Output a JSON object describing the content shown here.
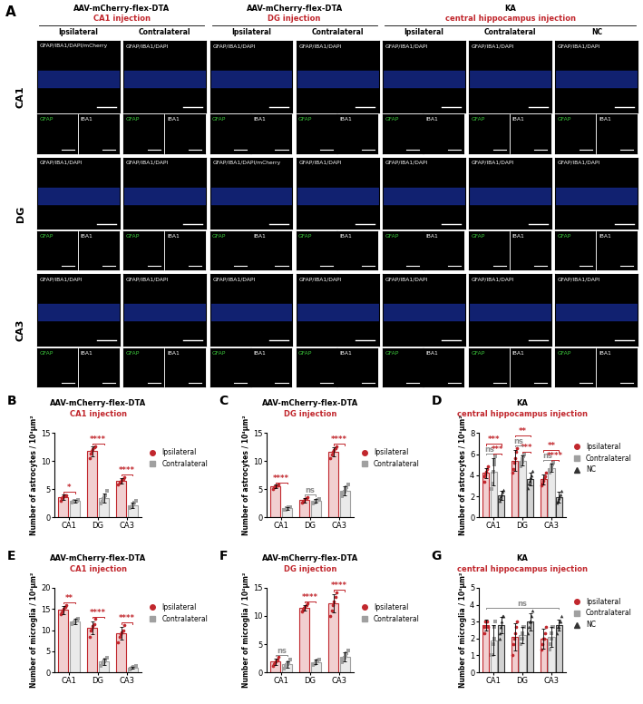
{
  "image_panel": {
    "label": "A",
    "groups": [
      {
        "title": "AAV-mCherry-flex-DTA",
        "subtitle": "CA1 injection",
        "columns": [
          "Ipsilateral",
          "Contralateral"
        ]
      },
      {
        "title": "AAV-mCherry-flex-DTA",
        "subtitle": "DG injection",
        "columns": [
          "Ipsilateral",
          "Contralateral"
        ]
      },
      {
        "title": "KA",
        "subtitle": "central hippocampus injection",
        "columns": [
          "Ipsilateral",
          "Contralateral",
          "NC"
        ]
      }
    ],
    "insets": [
      {
        "label": "GFAP",
        "color": "#3cc83c"
      },
      {
        "label": "IBA1",
        "color": "#ffffff"
      }
    ],
    "rows": [
      {
        "label": "CA1",
        "cells": [
          "GFAP/IBA1/DAPI/mCherry",
          "GFAP/IBA1/DAPI",
          "GFAP/IBA1/DAPI",
          "GFAP/IBA1/DAPI",
          "GFAP/IBA1/DAPI",
          "GFAP/IBA1/DAPI",
          "GFAP/IBA1/DAPI"
        ]
      },
      {
        "label": "DG",
        "cells": [
          "GFAP/IBA1/DAPI",
          "GFAP/IBA1/DAPI",
          "GFAP/IBA1/DAPI/mCherry",
          "GFAP/IBA1/DAPI",
          "GFAP/IBA1/DAPI",
          "GFAP/IBA1/DAPI",
          "GFAP/IBA1/DAPI"
        ]
      },
      {
        "label": "CA3",
        "cells": [
          "GFAP/IBA1/DAPI",
          "GFAP/IBA1/DAPI",
          "GFAP/IBA1/DAPI",
          "GFAP/IBA1/DAPI",
          "GFAP/IBA1/DAPI",
          "GFAP/IBA1/DAPI",
          "GFAP/IBA1/DAPI"
        ]
      }
    ]
  },
  "chart_data": [
    {
      "panel": "B",
      "type": "bar",
      "title": "AAV-mCherry-flex-DTA",
      "subtitle": "CA1 injection",
      "y_label": "Number of astrocytes / 10⁴μm²",
      "categories": [
        "CA1",
        "DG",
        "CA3"
      ],
      "ylim": [
        0,
        15
      ],
      "yticks": [
        0,
        5,
        10,
        15
      ],
      "legend": "right",
      "series": [
        {
          "name": "Ipsilateral",
          "color": "#c1272d",
          "marker": "circle",
          "values": [
            3.6,
            11.8,
            6.5
          ],
          "errors": [
            0.5,
            0.9,
            0.5
          ],
          "points": [
            [
              3.0,
              3.4,
              3.6,
              3.8,
              3.9,
              4.0
            ],
            [
              10.5,
              11.3,
              11.8,
              12.2,
              12.4,
              12.6
            ],
            [
              5.9,
              6.1,
              6.3,
              6.6,
              6.9,
              7.2
            ]
          ]
        },
        {
          "name": "Contralateral",
          "color": "#a0a0a0",
          "marker": "square",
          "values": [
            2.9,
            3.5,
            2.2
          ],
          "errors": [
            0.2,
            0.8,
            0.5
          ],
          "points": [
            [
              2.7,
              2.8,
              2.9,
              2.9,
              3.0,
              3.1
            ],
            [
              2.5,
              2.8,
              3.2,
              3.6,
              4.0,
              4.8
            ],
            [
              1.6,
              1.8,
              2.0,
              2.3,
              2.6,
              2.9
            ]
          ]
        }
      ],
      "annotations": [
        {
          "category": "CA1",
          "from": "Ipsilateral",
          "to": "Contralateral",
          "text": "*",
          "color": "#c1272d"
        },
        {
          "category": "DG",
          "from": "Ipsilateral",
          "to": "Contralateral",
          "text": "****",
          "color": "#c1272d"
        },
        {
          "category": "CA3",
          "from": "Ipsilateral",
          "to": "Contralateral",
          "text": "****",
          "color": "#c1272d"
        }
      ]
    },
    {
      "panel": "C",
      "type": "bar",
      "title": "AAV-mCherry-flex-DTA",
      "subtitle": "DG injection",
      "y_label": "Number of astrocytes / 10⁴μm²",
      "categories": [
        "CA1",
        "DG",
        "CA3"
      ],
      "ylim": [
        0,
        15
      ],
      "yticks": [
        0,
        5,
        10,
        15
      ],
      "legend": "right",
      "series": [
        {
          "name": "Ipsilateral",
          "color": "#c1272d",
          "marker": "circle",
          "values": [
            5.5,
            3.1,
            11.7
          ],
          "errors": [
            0.3,
            0.4,
            0.8
          ],
          "points": [
            [
              5.1,
              5.3,
              5.5,
              5.6,
              5.7,
              5.8
            ],
            [
              2.6,
              2.8,
              3.0,
              3.2,
              3.4,
              3.6
            ],
            [
              10.6,
              11.2,
              11.6,
              11.9,
              12.3,
              12.6
            ]
          ]
        },
        {
          "name": "Contralateral",
          "color": "#a0a0a0",
          "marker": "square",
          "values": [
            1.6,
            2.9,
            4.8
          ],
          "errors": [
            0.2,
            0.3,
            0.8
          ],
          "points": [
            [
              1.3,
              1.4,
              1.6,
              1.7,
              1.8,
              1.9
            ],
            [
              2.5,
              2.7,
              2.9,
              3.0,
              3.1,
              3.2
            ],
            [
              3.8,
              4.2,
              4.6,
              5.0,
              5.4,
              5.8
            ]
          ]
        }
      ],
      "annotations": [
        {
          "category": "CA1",
          "from": "Ipsilateral",
          "to": "Contralateral",
          "text": "****",
          "color": "#c1272d"
        },
        {
          "category": "DG",
          "from": "Ipsilateral",
          "to": "Contralateral",
          "text": "ns",
          "color": "#8c8c8c"
        },
        {
          "category": "CA3",
          "from": "Ipsilateral",
          "to": "Contralateral",
          "text": "****",
          "color": "#c1272d"
        }
      ]
    },
    {
      "panel": "D",
      "type": "bar",
      "title": "KA",
      "subtitle": "central hippocampus injection",
      "y_label": "Number of astrocytes / 10⁴μm²",
      "categories": [
        "CA1",
        "DG",
        "CA3"
      ],
      "ylim": [
        0,
        8
      ],
      "yticks": [
        0,
        2,
        4,
        6,
        8
      ],
      "legend": "right",
      "series": [
        {
          "name": "Ipsilateral",
          "color": "#c1272d",
          "marker": "circle",
          "values": [
            4.2,
            5.4,
            3.6
          ],
          "errors": [
            0.5,
            1.0,
            0.5
          ],
          "points": [
            [
              3.4,
              3.9,
              4.1,
              4.3,
              4.6,
              4.8
            ],
            [
              4.2,
              4.6,
              5.2,
              5.6,
              6.2,
              6.6
            ],
            [
              3.0,
              3.2,
              3.5,
              3.7,
              3.9,
              4.2
            ]
          ]
        },
        {
          "name": "Contralateral",
          "color": "#a0a0a0",
          "marker": "square",
          "values": [
            4.3,
            5.4,
            4.7
          ],
          "errors": [
            1.3,
            0.5,
            0.4
          ],
          "points": [
            [
              2.7,
              3.2,
              4.3,
              5.0,
              5.4,
              5.8
            ],
            [
              4.8,
              5.1,
              5.3,
              5.5,
              5.8,
              6.0
            ],
            [
              4.2,
              4.4,
              4.6,
              4.8,
              5.0,
              5.2
            ]
          ]
        },
        {
          "name": "NC",
          "color": "#333333",
          "marker": "triangle",
          "values": [
            2.1,
            3.6,
            1.9
          ],
          "errors": [
            0.4,
            0.6,
            0.5
          ],
          "points": [
            [
              1.6,
              1.8,
              2.0,
              2.2,
              2.4,
              2.6
            ],
            [
              2.8,
              3.2,
              3.5,
              3.8,
              4.0,
              4.4
            ],
            [
              1.4,
              1.6,
              1.8,
              2.0,
              2.2,
              2.5
            ]
          ]
        }
      ],
      "annotations": [
        {
          "category": "CA1",
          "from": "Ipsilateral",
          "to": "Contralateral",
          "text": "ns",
          "color": "#8c8c8c"
        },
        {
          "category": "CA1",
          "from": "Contralateral",
          "to": "NC",
          "text": "***",
          "color": "#c1272d"
        },
        {
          "category": "CA1",
          "from": "Ipsilateral",
          "to": "NC",
          "text": "***",
          "color": "#c1272d"
        },
        {
          "category": "DG",
          "from": "Ipsilateral",
          "to": "Contralateral",
          "text": "ns",
          "color": "#8c8c8c"
        },
        {
          "category": "DG",
          "from": "Contralateral",
          "to": "NC",
          "text": "***",
          "color": "#c1272d"
        },
        {
          "category": "DG",
          "from": "Ipsilateral",
          "to": "NC",
          "text": "**",
          "color": "#c1272d"
        },
        {
          "category": "CA3",
          "from": "Ipsilateral",
          "to": "Contralateral",
          "text": "ns",
          "color": "#8c8c8c"
        },
        {
          "category": "CA3",
          "from": "Contralateral",
          "to": "NC",
          "text": "****",
          "color": "#c1272d"
        },
        {
          "category": "CA3",
          "from": "Ipsilateral",
          "to": "NC",
          "text": "**",
          "color": "#c1272d"
        }
      ]
    },
    {
      "panel": "E",
      "type": "bar",
      "title": "AAV-mCherry-flex-DTA",
      "subtitle": "CA1 injection",
      "y_label": "Number of microglia / 10⁴μm²",
      "categories": [
        "CA1",
        "DG",
        "CA3"
      ],
      "ylim": [
        0,
        20
      ],
      "yticks": [
        0,
        5,
        10,
        15,
        20
      ],
      "legend": "right",
      "series": [
        {
          "name": "Ipsilateral",
          "color": "#c1272d",
          "marker": "circle",
          "values": [
            14.8,
            10.6,
            9.2
          ],
          "errors": [
            1.0,
            1.5,
            1.5
          ],
          "points": [
            [
              13.8,
              14.2,
              14.6,
              15.0,
              15.4,
              16.0
            ],
            [
              8.5,
              9.8,
              10.3,
              10.9,
              11.4,
              12.6
            ],
            [
              7.2,
              8.3,
              9.0,
              9.5,
              10.0,
              11.2
            ]
          ]
        },
        {
          "name": "Contralateral",
          "color": "#a0a0a0",
          "marker": "square",
          "values": [
            12.0,
            2.5,
            1.1
          ],
          "errors": [
            0.6,
            0.8,
            0.3
          ],
          "points": [
            [
              11.3,
              11.6,
              11.9,
              12.1,
              12.4,
              12.7
            ],
            [
              1.6,
              1.9,
              2.3,
              2.6,
              3.0,
              3.5
            ],
            [
              0.7,
              0.9,
              1.0,
              1.2,
              1.3,
              1.5
            ]
          ]
        }
      ],
      "annotations": [
        {
          "category": "CA1",
          "from": "Ipsilateral",
          "to": "Contralateral",
          "text": "**",
          "color": "#c1272d"
        },
        {
          "category": "DG",
          "from": "Ipsilateral",
          "to": "Contralateral",
          "text": "****",
          "color": "#c1272d"
        },
        {
          "category": "CA3",
          "from": "Ipsilateral",
          "to": "Contralateral",
          "text": "****",
          "color": "#c1272d"
        }
      ]
    },
    {
      "panel": "F",
      "type": "bar",
      "title": "AAV-mCherry-flex-DTA",
      "subtitle": "DG injection",
      "y_label": "Number of microglia / 10⁴μm²",
      "categories": [
        "CA1",
        "DG",
        "CA3"
      ],
      "ylim": [
        0,
        15
      ],
      "yticks": [
        0,
        5,
        10,
        15
      ],
      "legend": "right",
      "series": [
        {
          "name": "Ipsilateral",
          "color": "#c1272d",
          "marker": "circle",
          "values": [
            1.9,
            11.5,
            12.2
          ],
          "errors": [
            0.6,
            0.5,
            1.6
          ],
          "points": [
            [
              1.1,
              1.5,
              1.8,
              2.0,
              2.3,
              2.7
            ],
            [
              10.8,
              11.1,
              11.4,
              11.6,
              11.9,
              12.2
            ],
            [
              10.0,
              11.0,
              12.0,
              12.6,
              13.4,
              14.2
            ]
          ]
        },
        {
          "name": "Contralateral",
          "color": "#a0a0a0",
          "marker": "square",
          "values": [
            1.4,
            1.8,
            2.8
          ],
          "errors": [
            0.6,
            0.4,
            0.8
          ],
          "points": [
            [
              0.7,
              1.0,
              1.3,
              1.5,
              1.8,
              2.2
            ],
            [
              1.3,
              1.5,
              1.7,
              1.9,
              2.1,
              2.3
            ],
            [
              1.8,
              2.2,
              2.6,
              3.0,
              3.4,
              3.8
            ]
          ]
        }
      ],
      "annotations": [
        {
          "category": "CA1",
          "from": "Ipsilateral",
          "to": "Contralateral",
          "text": "ns",
          "color": "#8c8c8c"
        },
        {
          "category": "DG",
          "from": "Ipsilateral",
          "to": "Contralateral",
          "text": "****",
          "color": "#c1272d"
        },
        {
          "category": "CA3",
          "from": "Ipsilateral",
          "to": "Contralateral",
          "text": "****",
          "color": "#c1272d"
        }
      ]
    },
    {
      "panel": "G",
      "type": "bar",
      "title": "KA",
      "subtitle": "central hippocampus injection",
      "y_label": "Number of microglia / 10⁴μm²",
      "categories": [
        "CA1",
        "DG",
        "CA3"
      ],
      "ylim": [
        0,
        5
      ],
      "yticks": [
        0,
        1,
        2,
        3,
        4,
        5
      ],
      "legend": "right",
      "series": [
        {
          "name": "Ipsilateral",
          "color": "#c1272d",
          "marker": "circle",
          "values": [
            2.8,
            2.1,
            2.0
          ],
          "errors": [
            0.3,
            0.8,
            0.6
          ],
          "points": [
            [
              2.33,
              2.67,
              3.0,
              3.0,
              3.0,
              2.67
            ],
            [
              1.0,
              1.67,
              2.0,
              2.33,
              2.67,
              3.0
            ],
            [
              1.33,
              1.67,
              2.0,
              2.0,
              2.33,
              2.67
            ]
          ]
        },
        {
          "name": "Contralateral",
          "color": "#a0a0a0",
          "marker": "square",
          "values": [
            1.9,
            2.2,
            2.1
          ],
          "errors": [
            0.9,
            0.5,
            0.6
          ],
          "points": [
            [
              1.0,
              1.0,
              1.67,
              2.0,
              2.67,
              3.0
            ],
            [
              1.67,
              2.0,
              2.0,
              2.33,
              2.67,
              2.67
            ],
            [
              1.33,
              1.67,
              2.0,
              2.33,
              2.67,
              2.67
            ]
          ]
        },
        {
          "name": "NC",
          "color": "#333333",
          "marker": "triangle",
          "values": [
            2.8,
            3.0,
            2.8
          ],
          "errors": [
            0.5,
            0.5,
            0.3
          ],
          "points": [
            [
              2.0,
              2.33,
              2.67,
              3.0,
              3.33,
              3.33
            ],
            [
              2.33,
              2.67,
              3.0,
              3.0,
              3.33,
              3.67
            ],
            [
              2.33,
              2.67,
              2.67,
              3.0,
              3.0,
              3.33
            ]
          ]
        }
      ],
      "annotations": [
        {
          "from": "CA1",
          "to": "CA3",
          "text": "ns",
          "color": "#8c8c8c"
        }
      ]
    }
  ]
}
